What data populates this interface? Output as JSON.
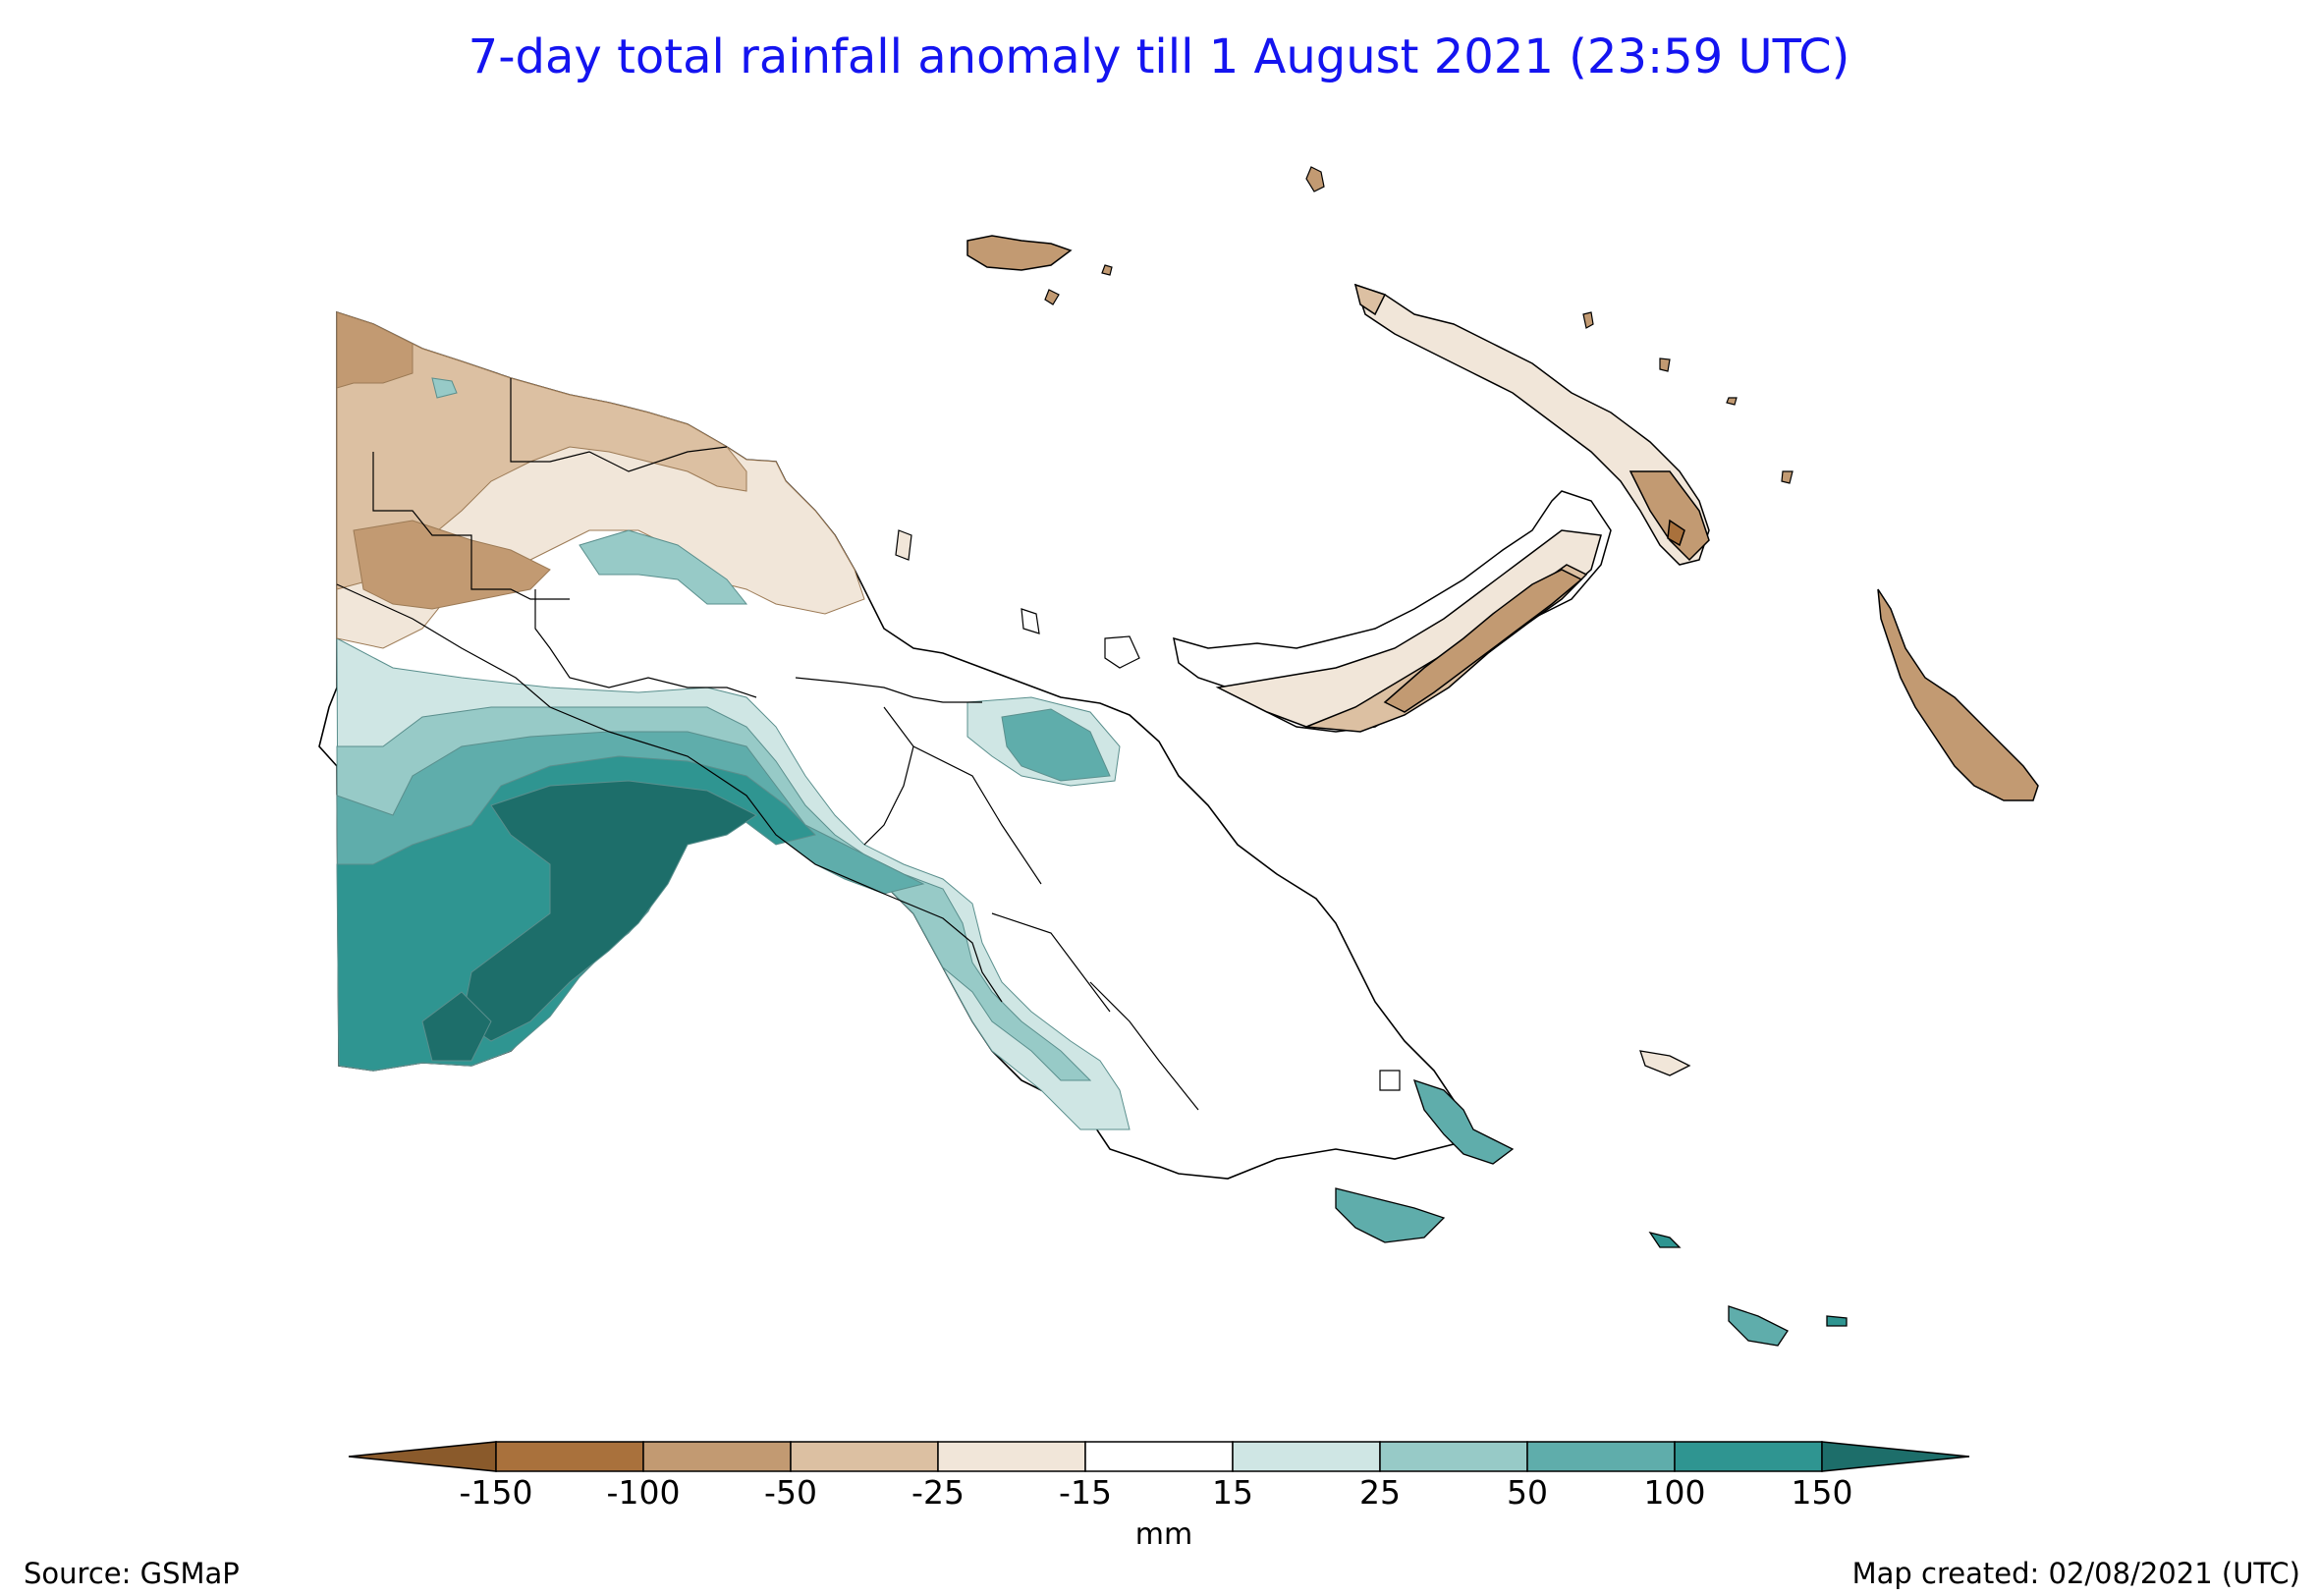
{
  "title": "7-day total rainfall anomaly till 1 August 2021 (23:59 UTC)",
  "legend": {
    "unit": "mm",
    "ticks": [
      "-150",
      "-100",
      "-50",
      "-25",
      "-15",
      "15",
      "25",
      "50",
      "100",
      "150"
    ],
    "bins": [
      {
        "label": "< -150",
        "color": "#8a5a2b"
      },
      {
        "label": "-150 to -100",
        "color": "#a9713c"
      },
      {
        "label": "-100 to -50",
        "color": "#c29a72"
      },
      {
        "label": "-50 to -25",
        "color": "#dcc0a2"
      },
      {
        "label": "-25 to -15",
        "color": "#f1e6d9"
      },
      {
        "label": "-15 to 15",
        "color": "#ffffff"
      },
      {
        "label": "15 to 25",
        "color": "#cfe6e4"
      },
      {
        "label": "25 to 50",
        "color": "#97cac7"
      },
      {
        "label": "50 to 100",
        "color": "#5fadab"
      },
      {
        "label": "100 to 150",
        "color": "#2f9591"
      },
      {
        "label": "> 150",
        "color": "#1d6e6a"
      }
    ]
  },
  "source": "Source: GSMaP",
  "created": "Map created: 02/08/2021 (UTC)"
}
